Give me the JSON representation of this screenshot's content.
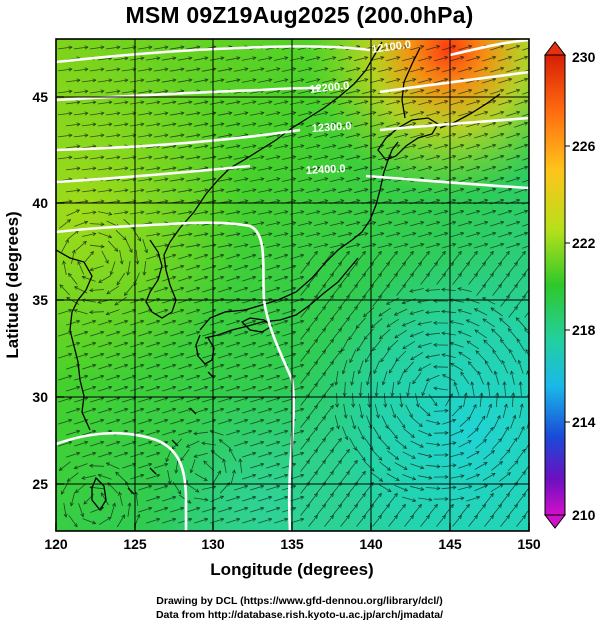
{
  "title": "MSM 09Z19Aug2025 (200.0hPa)",
  "map": {
    "type": "map",
    "lon_range": [
      120,
      150
    ],
    "lat_range": [
      22.5,
      48
    ],
    "x_ticks": [
      "120",
      "125",
      "130",
      "135",
      "140",
      "145",
      "150"
    ],
    "y_ticks": [
      "25",
      "30",
      "35",
      "40",
      "45"
    ],
    "xlabel": "Longitude (degrees)",
    "ylabel": "Latitude  (degrees)",
    "grid": true,
    "contour_labels": [
      "12100.0",
      "12200.0",
      "12300.0",
      "12400.0"
    ]
  },
  "colorbar": {
    "labels": [
      "230",
      "226",
      "222",
      "218",
      "214",
      "210"
    ]
  },
  "footer": {
    "line1": "Drawing by DCL (https://www.gfd-dennou.org/library/dcl/)",
    "line2": "Data from http://database.rish.kyoto-u.ac.jp/arch/jmadata/"
  }
}
